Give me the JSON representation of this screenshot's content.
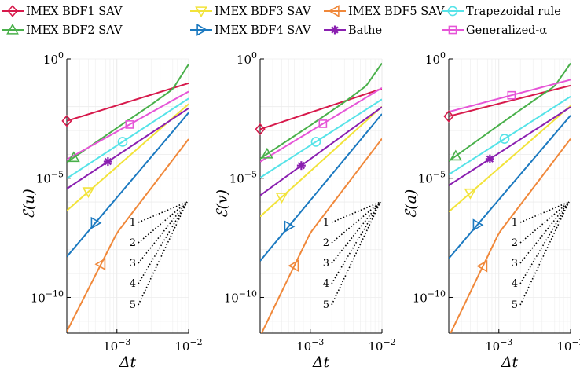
{
  "legend": [
    {
      "key": "bdf1",
      "label": "IMEX BDF1 SAV",
      "color": "#d7194b",
      "marker": "diamond"
    },
    {
      "key": "bdf3",
      "label": "IMEX BDF3 SAV",
      "color": "#f2e33a",
      "marker": "triangle-down"
    },
    {
      "key": "bdf5",
      "label": "IMEX BDF5 SAV",
      "color": "#f0883a",
      "marker": "triangle-left"
    },
    {
      "key": "trap",
      "label": "Trapezoidal rule",
      "color": "#56e3e8",
      "marker": "circle"
    },
    {
      "key": "bdf2",
      "label": "IMEX BDF2 SAV",
      "color": "#49b04a",
      "marker": "triangle-up"
    },
    {
      "key": "bdf4",
      "label": "IMEX BDF4 SAV",
      "color": "#1b79c0",
      "marker": "triangle-right"
    },
    {
      "key": "bathe",
      "label": "Bathe",
      "color": "#8a1fb0",
      "marker": "asterisk"
    },
    {
      "key": "galpha",
      "label": "Generalized-α",
      "color": "#e655d7",
      "marker": "square"
    }
  ],
  "chart_data": [
    {
      "type": "line",
      "ylabel": "ℰ(u)",
      "xlabel": "Δt",
      "x_scale": "log",
      "y_scale": "log",
      "xlim": [
        0.0002,
        0.01
      ],
      "ylim": [
        3e-12,
        1
      ],
      "x_ticks": [
        {
          "value": 0.001,
          "label": "10−3"
        },
        {
          "value": 0.01,
          "label": "10−2"
        }
      ],
      "y_ticks": [
        {
          "value": 1,
          "label": "10^0"
        },
        {
          "value": 1e-05,
          "label": "10−5"
        },
        {
          "value": 1e-10,
          "label": "10−10"
        }
      ],
      "series": [
        {
          "key": "bdf1",
          "x": [
            0.0002,
            0.01
          ],
          "y": [
            0.00252,
            0.0964
          ],
          "marker_x": 0.0002
        },
        {
          "key": "bdf2",
          "x": [
            0.0002,
            0.001,
            0.003,
            0.006,
            0.01
          ],
          "y": [
            4.63e-05,
            0.00128,
            0.0121,
            0.0542,
            0.6
          ],
          "marker_x": 0.00025
        },
        {
          "key": "bdf3",
          "x": [
            0.0002,
            0.01
          ],
          "y": [
            4.38e-07,
            0.0129
          ],
          "marker_x": 0.0004
        },
        {
          "key": "bdf4",
          "x": [
            0.0002,
            0.01
          ],
          "y": [
            5.1e-09,
            0.00556
          ],
          "marker_x": 0.0005
        },
        {
          "key": "bdf5",
          "x": [
            0.0002,
            0.001,
            0.01
          ],
          "y": [
            3.74e-12,
            5.06e-08,
            0.000437
          ],
          "marker_x": 0.0006
        },
        {
          "key": "trap",
          "x": [
            0.0002,
            0.01
          ],
          "y": [
            9.77e-06,
            0.022
          ],
          "marker_x": 0.0012
        },
        {
          "key": "bathe",
          "x": [
            0.0002,
            0.01
          ],
          "y": [
            3.61e-06,
            0.00853
          ],
          "marker_x": 0.00075
        },
        {
          "key": "galpha",
          "x": [
            0.0002,
            0.01
          ],
          "y": [
            6.07e-05,
            0.0431
          ],
          "marker_x": 0.0015
        }
      ],
      "slope_labels": [
        "1",
        "2",
        "3",
        "4",
        "5"
      ]
    },
    {
      "type": "line",
      "ylabel": "ℰ(v)",
      "xlabel": "Δt",
      "x_scale": "log",
      "y_scale": "log",
      "xlim": [
        0.0002,
        0.01
      ],
      "ylim": [
        3e-12,
        1
      ],
      "x_ticks": [
        {
          "value": 0.001,
          "label": "10−3"
        },
        {
          "value": 0.01,
          "label": "10−2"
        }
      ],
      "y_ticks": [
        {
          "value": 1,
          "label": "10^0"
        },
        {
          "value": 1e-05,
          "label": "10−5"
        },
        {
          "value": 1e-10,
          "label": "10−10"
        }
      ],
      "series": [
        {
          "key": "bdf1",
          "x": [
            0.0002,
            0.01
          ],
          "y": [
            0.00113,
            0.0567
          ],
          "marker_x": 0.0002
        },
        {
          "key": "bdf2",
          "x": [
            0.0002,
            0.001,
            0.003,
            0.006,
            0.01
          ],
          "y": [
            6.6e-05,
            0.00163,
            0.0156,
            0.0737,
            0.66
          ],
          "marker_x": 0.00025
        },
        {
          "key": "bdf3",
          "x": [
            0.0002,
            0.01
          ],
          "y": [
            2.44e-07,
            0.0101
          ],
          "marker_x": 0.0004
        },
        {
          "key": "bdf4",
          "x": [
            0.0002,
            0.01
          ],
          "y": [
            3.4e-09,
            0.00494
          ],
          "marker_x": 0.0005
        },
        {
          "key": "bdf5",
          "x": [
            0.0002,
            0.001,
            0.01
          ],
          "y": [
            2.35e-12,
            5.06e-08,
            0.000453
          ],
          "marker_x": 0.0006
        },
        {
          "key": "trap",
          "x": [
            0.0002,
            0.01
          ],
          "y": [
            1.05e-05,
            0.0203
          ],
          "marker_x": 0.0012
        },
        {
          "key": "bathe",
          "x": [
            0.0002,
            0.01
          ],
          "y": [
            1.89e-06,
            0.00964
          ],
          "marker_x": 0.00075
        },
        {
          "key": "galpha",
          "x": [
            0.0002,
            0.01
          ],
          "y": [
            4.87e-05,
            0.0611
          ],
          "marker_x": 0.0015
        }
      ],
      "slope_labels": [
        "1",
        "2",
        "3",
        "4",
        "5"
      ]
    },
    {
      "type": "line",
      "ylabel": "ℰ(a)",
      "xlabel": "Δt",
      "x_scale": "log",
      "y_scale": "log",
      "xlim": [
        0.0002,
        0.01
      ],
      "ylim": [
        3e-12,
        1
      ],
      "x_ticks": [
        {
          "value": 0.001,
          "label": "10−3"
        },
        {
          "value": 0.01,
          "label": "10−2"
        }
      ],
      "y_ticks": [
        {
          "value": 1,
          "label": "10^0"
        },
        {
          "value": 1e-05,
          "label": "10−5"
        },
        {
          "value": 1e-10,
          "label": "10−10"
        }
      ],
      "series": [
        {
          "key": "bdf1",
          "x": [
            0.0002,
            0.01
          ],
          "y": [
            0.00393,
            0.0768
          ],
          "marker_x": 0.0002
        },
        {
          "key": "bdf2",
          "x": [
            0.0002,
            0.001,
            0.003,
            0.006,
            0.01
          ],
          "y": [
            5.22e-05,
            0.00169,
            0.0174,
            0.0723,
            0.66
          ],
          "marker_x": 0.00025
        },
        {
          "key": "bdf3",
          "x": [
            0.0002,
            0.01
          ],
          "y": [
            3.91e-07,
            0.0108
          ],
          "marker_x": 0.0004
        },
        {
          "key": "bdf4",
          "x": [
            0.0002,
            0.01
          ],
          "y": [
            4.3e-09,
            0.00428
          ],
          "marker_x": 0.0005
        },
        {
          "key": "bdf5",
          "x": [
            0.0002,
            0.001,
            0.01
          ],
          "y": [
            2.2e-12,
            4.98e-08,
            0.000448
          ],
          "marker_x": 0.0006
        },
        {
          "key": "trap",
          "x": [
            0.0002,
            0.01
          ],
          "y": [
            1.42e-05,
            0.0266
          ],
          "marker_x": 0.0012
        },
        {
          "key": "bathe",
          "x": [
            0.0002,
            0.01
          ],
          "y": [
            4.97e-06,
            0.00966
          ],
          "marker_x": 0.00075
        },
        {
          "key": "galpha",
          "x": [
            0.0002,
            0.01
          ],
          "y": [
            0.00607,
            0.135
          ],
          "marker_x": 0.0015
        }
      ],
      "slope_labels": [
        "1",
        "2",
        "3",
        "4",
        "5"
      ]
    }
  ]
}
